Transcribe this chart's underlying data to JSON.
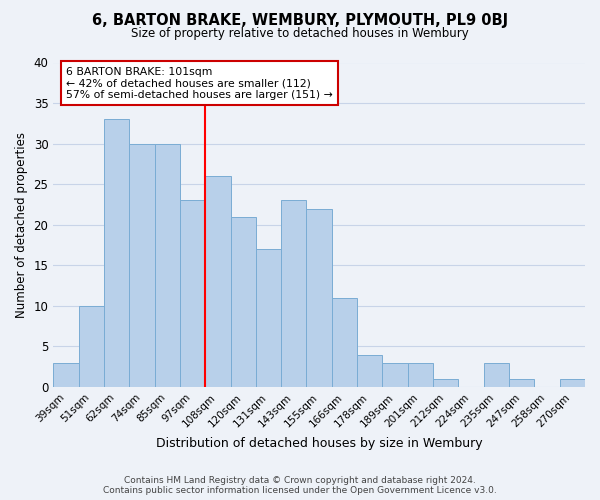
{
  "title": "6, BARTON BRAKE, WEMBURY, PLYMOUTH, PL9 0BJ",
  "subtitle": "Size of property relative to detached houses in Wembury",
  "xlabel": "Distribution of detached houses by size in Wembury",
  "ylabel": "Number of detached properties",
  "footer_line1": "Contains HM Land Registry data © Crown copyright and database right 2024.",
  "footer_line2": "Contains public sector information licensed under the Open Government Licence v3.0.",
  "categories": [
    "39sqm",
    "51sqm",
    "62sqm",
    "74sqm",
    "85sqm",
    "97sqm",
    "108sqm",
    "120sqm",
    "131sqm",
    "143sqm",
    "155sqm",
    "166sqm",
    "178sqm",
    "189sqm",
    "201sqm",
    "212sqm",
    "224sqm",
    "235sqm",
    "247sqm",
    "258sqm",
    "270sqm"
  ],
  "values": [
    3,
    10,
    33,
    30,
    30,
    23,
    26,
    21,
    17,
    23,
    22,
    11,
    4,
    3,
    3,
    1,
    0,
    3,
    1,
    0,
    1
  ],
  "bar_color": "#b8d0ea",
  "bar_edge_color": "#7aacd4",
  "red_line_after_index": 5,
  "ylim": [
    0,
    40
  ],
  "yticks": [
    0,
    5,
    10,
    15,
    20,
    25,
    30,
    35,
    40
  ],
  "annotation_title": "6 BARTON BRAKE: 101sqm",
  "annotation_line1": "← 42% of detached houses are smaller (112)",
  "annotation_line2": "57% of semi-detached houses are larger (151) →",
  "annotation_box_color": "#ffffff",
  "annotation_box_edge": "#cc0000",
  "grid_color": "#c8d4e8",
  "background_color": "#eef2f8"
}
